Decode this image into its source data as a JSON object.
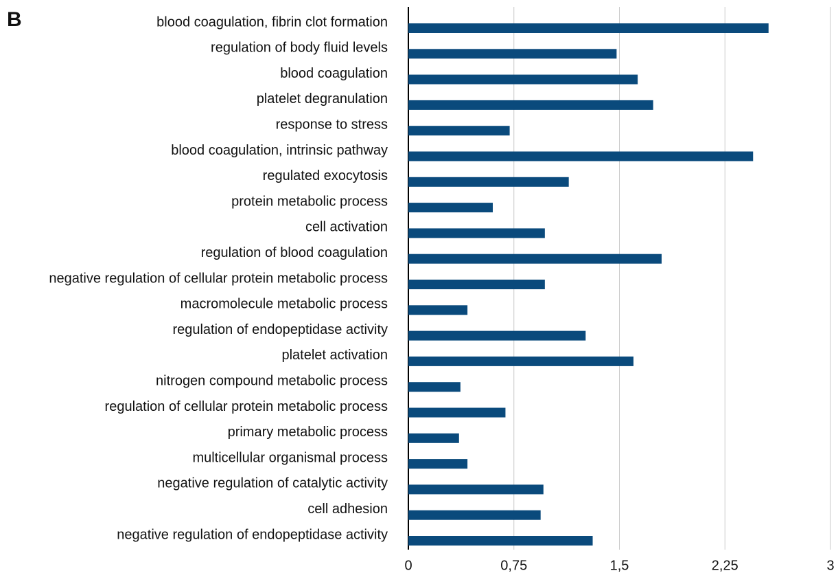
{
  "chart_data": {
    "type": "barh",
    "panel_label": "B",
    "categories": [
      "blood coagulation, fibrin clot formation",
      "regulation of body fluid levels",
      "blood coagulation",
      "platelet degranulation",
      "response to stress",
      "blood coagulation, intrinsic pathway",
      "regulated exocytosis",
      "protein metabolic process",
      "cell activation",
      "regulation of blood coagulation",
      "negative regulation of cellular protein metabolic process",
      "macromolecule metabolic process",
      "regulation of endopeptidase activity",
      "platelet activation",
      "nitrogen compound metabolic process",
      "regulation of cellular protein metabolic process",
      "primary metabolic process",
      "multicellular organismal process",
      "negative regulation of catalytic activity",
      "cell adhesion",
      "negative regulation of endopeptidase activity"
    ],
    "values": [
      2.56,
      1.48,
      1.63,
      1.74,
      0.72,
      2.45,
      1.14,
      0.6,
      0.97,
      1.8,
      0.97,
      0.42,
      1.26,
      1.6,
      0.37,
      0.69,
      0.36,
      0.42,
      0.96,
      0.94,
      1.31
    ],
    "color": "#0a4a7c",
    "xlim": [
      0,
      3
    ],
    "xticks": [
      0,
      {
        "value": 0.75,
        "label": "0,75"
      },
      {
        "value": 1.5,
        "label": "1,5"
      },
      {
        "value": 2.25,
        "label": "2,25"
      },
      3
    ],
    "grid": true
  }
}
